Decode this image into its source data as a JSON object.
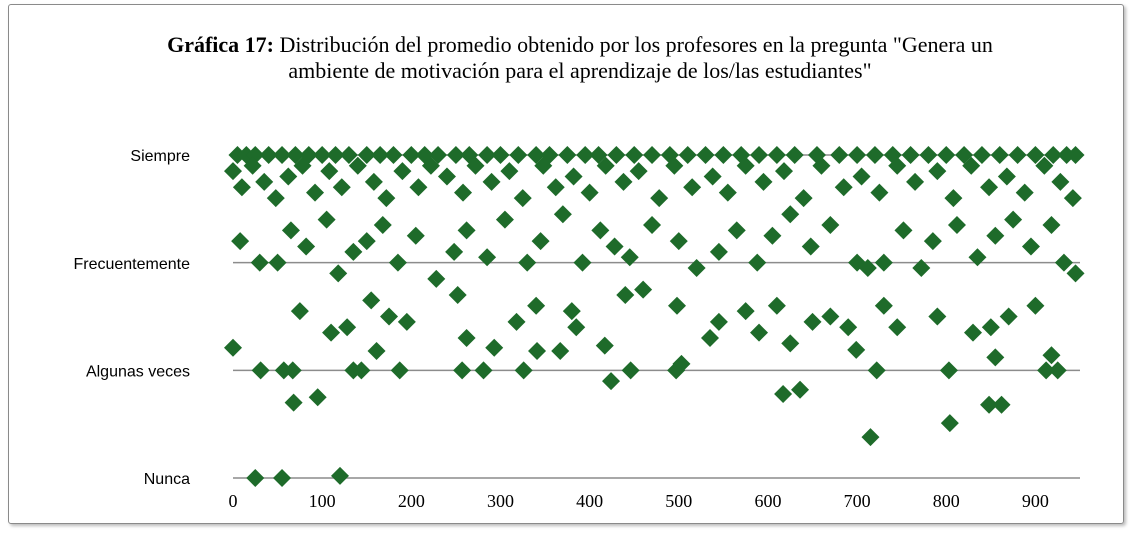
{
  "chart_data": {
    "type": "scatter",
    "title_label": "Gráfica 17:",
    "title": "Distribución del promedio obtenido por los profesores en la pregunta \"Genera un ambiente de motivación para el aprendizaje de los/las estudiantes\"",
    "color": "#1e6b2a",
    "xlim": [
      0,
      950
    ],
    "xticks": [
      0,
      100,
      200,
      300,
      400,
      500,
      600,
      700,
      800,
      900
    ],
    "ylim": [
      1,
      4
    ],
    "yticks": [
      {
        "value": 1,
        "label": "Nunca"
      },
      {
        "value": 2,
        "label": "Algunas veces"
      },
      {
        "value": 3,
        "label": "Frecuentemente"
      },
      {
        "value": 4,
        "label": "Siempre"
      }
    ],
    "grid": true,
    "x": [
      5,
      15,
      25,
      40,
      55,
      70,
      85,
      100,
      115,
      130,
      150,
      165,
      180,
      200,
      215,
      230,
      250,
      265,
      285,
      300,
      320,
      340,
      355,
      375,
      395,
      410,
      430,
      450,
      470,
      490,
      510,
      530,
      550,
      570,
      590,
      610,
      630,
      655,
      680,
      700,
      720,
      740,
      760,
      780,
      800,
      820,
      840,
      860,
      880,
      900,
      920,
      935,
      945,
      0,
      10,
      22,
      35,
      48,
      62,
      78,
      92,
      108,
      122,
      140,
      158,
      172,
      190,
      208,
      222,
      240,
      258,
      272,
      290,
      310,
      325,
      348,
      362,
      382,
      400,
      418,
      438,
      455,
      478,
      495,
      515,
      538,
      555,
      575,
      595,
      618,
      640,
      660,
      685,
      705,
      725,
      745,
      765,
      790,
      808,
      828,
      848,
      868,
      888,
      910,
      928,
      942,
      8,
      30,
      50,
      65,
      82,
      105,
      118,
      135,
      150,
      168,
      185,
      205,
      228,
      248,
      262,
      285,
      305,
      330,
      345,
      370,
      392,
      412,
      428,
      445,
      470,
      500,
      520,
      545,
      565,
      588,
      605,
      625,
      648,
      670,
      700,
      712,
      730,
      752,
      772,
      785,
      812,
      835,
      855,
      875,
      895,
      918,
      932,
      945,
      75,
      110,
      128,
      155,
      175,
      195,
      252,
      262,
      318,
      340,
      380,
      385,
      440,
      460,
      498,
      535,
      545,
      575,
      590,
      610,
      625,
      650,
      670,
      690,
      730,
      745,
      790,
      830,
      850,
      870,
      900,
      0,
      25,
      55,
      120,
      31,
      57,
      67,
      68,
      95,
      135,
      144,
      161,
      187,
      424,
      446,
      417,
      326,
      257,
      281,
      341,
      367,
      293,
      497,
      503,
      617,
      636,
      715,
      722,
      699,
      803,
      804,
      848,
      862,
      855,
      918,
      912,
      925
    ],
    "values": [
      4,
      4,
      4,
      4,
      4,
      4,
      4,
      4,
      4,
      4,
      4,
      4,
      4,
      4,
      4,
      4,
      4,
      4,
      4,
      4,
      4,
      4,
      4,
      4,
      4,
      4,
      4,
      4,
      4,
      4,
      4,
      4,
      4,
      4,
      4,
      4,
      4,
      4,
      4,
      4,
      4,
      4,
      4,
      4,
      4,
      4,
      4,
      4,
      4,
      4,
      4,
      4,
      4,
      3.85,
      3.7,
      3.9,
      3.75,
      3.6,
      3.8,
      3.9,
      3.65,
      3.85,
      3.7,
      3.9,
      3.75,
      3.6,
      3.85,
      3.7,
      3.9,
      3.8,
      3.65,
      3.9,
      3.75,
      3.85,
      3.6,
      3.9,
      3.7,
      3.8,
      3.65,
      3.9,
      3.75,
      3.85,
      3.6,
      3.9,
      3.7,
      3.8,
      3.65,
      3.9,
      3.75,
      3.85,
      3.6,
      3.9,
      3.7,
      3.8,
      3.65,
      3.9,
      3.75,
      3.85,
      3.6,
      3.9,
      3.7,
      3.8,
      3.65,
      3.9,
      3.75,
      3.6,
      3.2,
      3.0,
      3.0,
      3.3,
      3.15,
      3.4,
      2.9,
      3.1,
      3.2,
      3.35,
      3.0,
      3.25,
      2.85,
      3.1,
      3.3,
      3.05,
      3.4,
      3.0,
      3.2,
      3.45,
      3.0,
      3.3,
      3.15,
      3.05,
      3.35,
      3.2,
      2.95,
      3.1,
      3.3,
      3.0,
      3.25,
      3.45,
      3.15,
      3.35,
      3.0,
      2.95,
      3.0,
      3.3,
      2.95,
      3.2,
      3.35,
      3.05,
      3.25,
      3.4,
      3.15,
      3.35,
      3.0,
      2.9,
      2.55,
      2.35,
      2.4,
      2.65,
      2.5,
      2.45,
      2.7,
      2.3,
      2.45,
      2.6,
      2.55,
      2.4,
      2.7,
      2.75,
      2.6,
      2.3,
      2.45,
      2.55,
      2.35,
      2.6,
      2.25,
      2.45,
      2.5,
      2.4,
      2.6,
      2.4,
      2.5,
      2.35,
      2.4,
      2.5,
      2.6,
      2.21,
      1.0,
      1.0,
      1.02,
      2.0,
      2.0,
      2.0,
      1.7,
      1.75,
      2.0,
      2.0,
      2.18,
      2.0,
      1.9,
      2.0,
      2.23,
      2.0,
      2.0,
      2.0,
      2.18,
      2.18,
      2.21,
      2.0,
      2.06,
      1.78,
      1.82,
      1.38,
      2.0,
      2.19,
      2.0,
      1.51,
      1.68,
      1.68,
      2.12,
      2.14,
      2.0,
      2.0
    ]
  }
}
